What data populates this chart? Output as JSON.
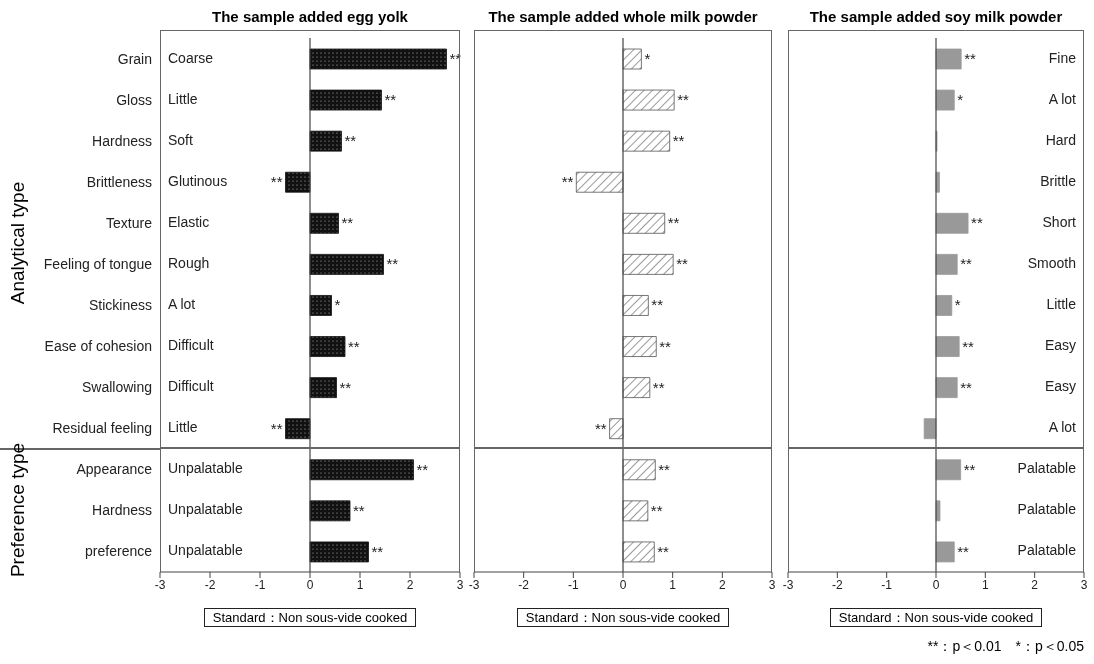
{
  "chart_data": [
    {
      "type": "bar",
      "orientation": "horizontal",
      "title": "The sample added egg yolk",
      "xlabel": "Standard：Non sous-vide cooked",
      "categories": [
        "Grain",
        "Gloss",
        "Hardness",
        "Brittleness",
        "Texture",
        "Feeling of tongue",
        "Stickiness",
        "Ease of cohesion",
        "Swallowing",
        "Residual feeling",
        "Appearance",
        "Hardness",
        "preference"
      ],
      "series": [
        {
          "color": "#111111",
          "values": [
            2.73,
            1.43,
            0.63,
            -0.49,
            0.57,
            1.47,
            0.43,
            0.7,
            0.53,
            -0.49,
            2.07,
            0.8,
            1.17
          ],
          "value_labels": [
            "**",
            "**",
            "**",
            "**",
            "**",
            "**",
            "*",
            "**",
            "**",
            "**",
            "**",
            "**",
            "**"
          ]
        }
      ],
      "xlim": [
        -3,
        3
      ],
      "xticks": [
        -3,
        -2,
        -1,
        0,
        1,
        2,
        3
      ],
      "ref_lines": [
        {
          "axis": "x",
          "value": 0
        }
      ],
      "annotations": [
        "Coarse",
        "Little",
        "Soft",
        "Glutinous",
        "Elastic",
        "Rough",
        "A lot",
        "Difficult",
        "Difficult",
        "Little",
        "Unpalatable",
        "Unpalatable",
        "Unpalatable",
        "Analytical type",
        "Preference type"
      ]
    },
    {
      "type": "bar",
      "orientation": "horizontal",
      "title": "The sample added whole milk powder",
      "xlabel": "Standard：Non sous-vide cooked",
      "tick_labels": "x",
      "categories": [
        null,
        null,
        null,
        null,
        null,
        null,
        null,
        null,
        null,
        null,
        null,
        null,
        null
      ],
      "series": [
        {
          "color": "#555555",
          "values": [
            0.37,
            1.03,
            0.94,
            -0.94,
            0.84,
            1.01,
            0.51,
            0.67,
            0.54,
            -0.27,
            0.65,
            0.5,
            0.63
          ],
          "value_labels": [
            "*",
            "**",
            "**",
            "**",
            "**",
            "**",
            "**",
            "**",
            "**",
            "**",
            "**",
            "**",
            "**"
          ]
        }
      ],
      "xlim": [
        -3,
        3
      ],
      "xticks": [
        -3,
        -2,
        -1,
        0,
        1,
        2,
        3
      ],
      "ref_lines": [
        {
          "axis": "x",
          "value": 0
        }
      ]
    },
    {
      "type": "bar",
      "orientation": "horizontal",
      "title": "The sample added soy milk powder",
      "xlabel": "Standard：Non sous-vide cooked",
      "tick_labels": "x",
      "categories": [
        null,
        null,
        null,
        null,
        null,
        null,
        null,
        null,
        null,
        null,
        null,
        null,
        null
      ],
      "series": [
        {
          "color": "#999999",
          "values": [
            0.51,
            0.37,
            0.02,
            0.07,
            0.65,
            0.43,
            0.32,
            0.47,
            0.43,
            -0.24,
            0.5,
            0.08,
            0.37
          ],
          "value_labels": [
            "**",
            "*",
            null,
            null,
            "**",
            "**",
            "*",
            "**",
            "**",
            null,
            "**",
            null,
            "**"
          ]
        }
      ],
      "xlim": [
        -3,
        3
      ],
      "xticks": [
        -3,
        -2,
        -1,
        0,
        1,
        2,
        3
      ],
      "ref_lines": [
        {
          "axis": "x",
          "value": 0
        }
      ],
      "annotations": [
        "Fine",
        "A lot",
        "Hard",
        "Brittle",
        "Short",
        "Smooth",
        "Little",
        "Easy",
        "Easy",
        "A lot",
        "Palatable",
        "Palatable",
        "Palatable",
        "**：p＜0.01　*：p＜0.05"
      ]
    }
  ]
}
